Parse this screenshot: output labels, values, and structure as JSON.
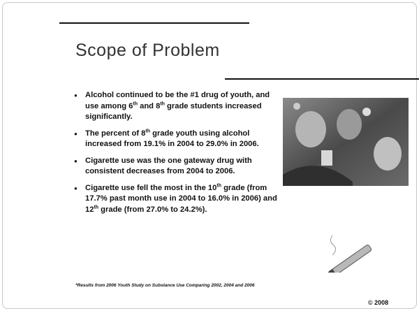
{
  "title": "Scope of Problem",
  "bullets": [
    [
      "Alcohol continued to be the #1 drug of youth, and use among 6",
      "th",
      " and 8",
      "th",
      " grade students increased significantly."
    ],
    [
      "The percent of 8",
      "th",
      " grade youth using alcohol increased from 19.1% in 2004 to 29.0% in 2006."
    ],
    [
      "Cigarette use was the one gateway drug with consistent decreases from 2004  to 2006."
    ],
    [
      "Cigarette use fell the most in the 10",
      "th",
      " grade  (from 17.7% past month use in 2004 to 16.0% in 2006) and 12",
      "th",
      " grade (from 27.0%  to 24.2%)."
    ]
  ],
  "footnote": "*Results from 2006 Youth Study on Substance Use Comparing 2002, 2004 and 2006",
  "copyright": "© 2008"
}
